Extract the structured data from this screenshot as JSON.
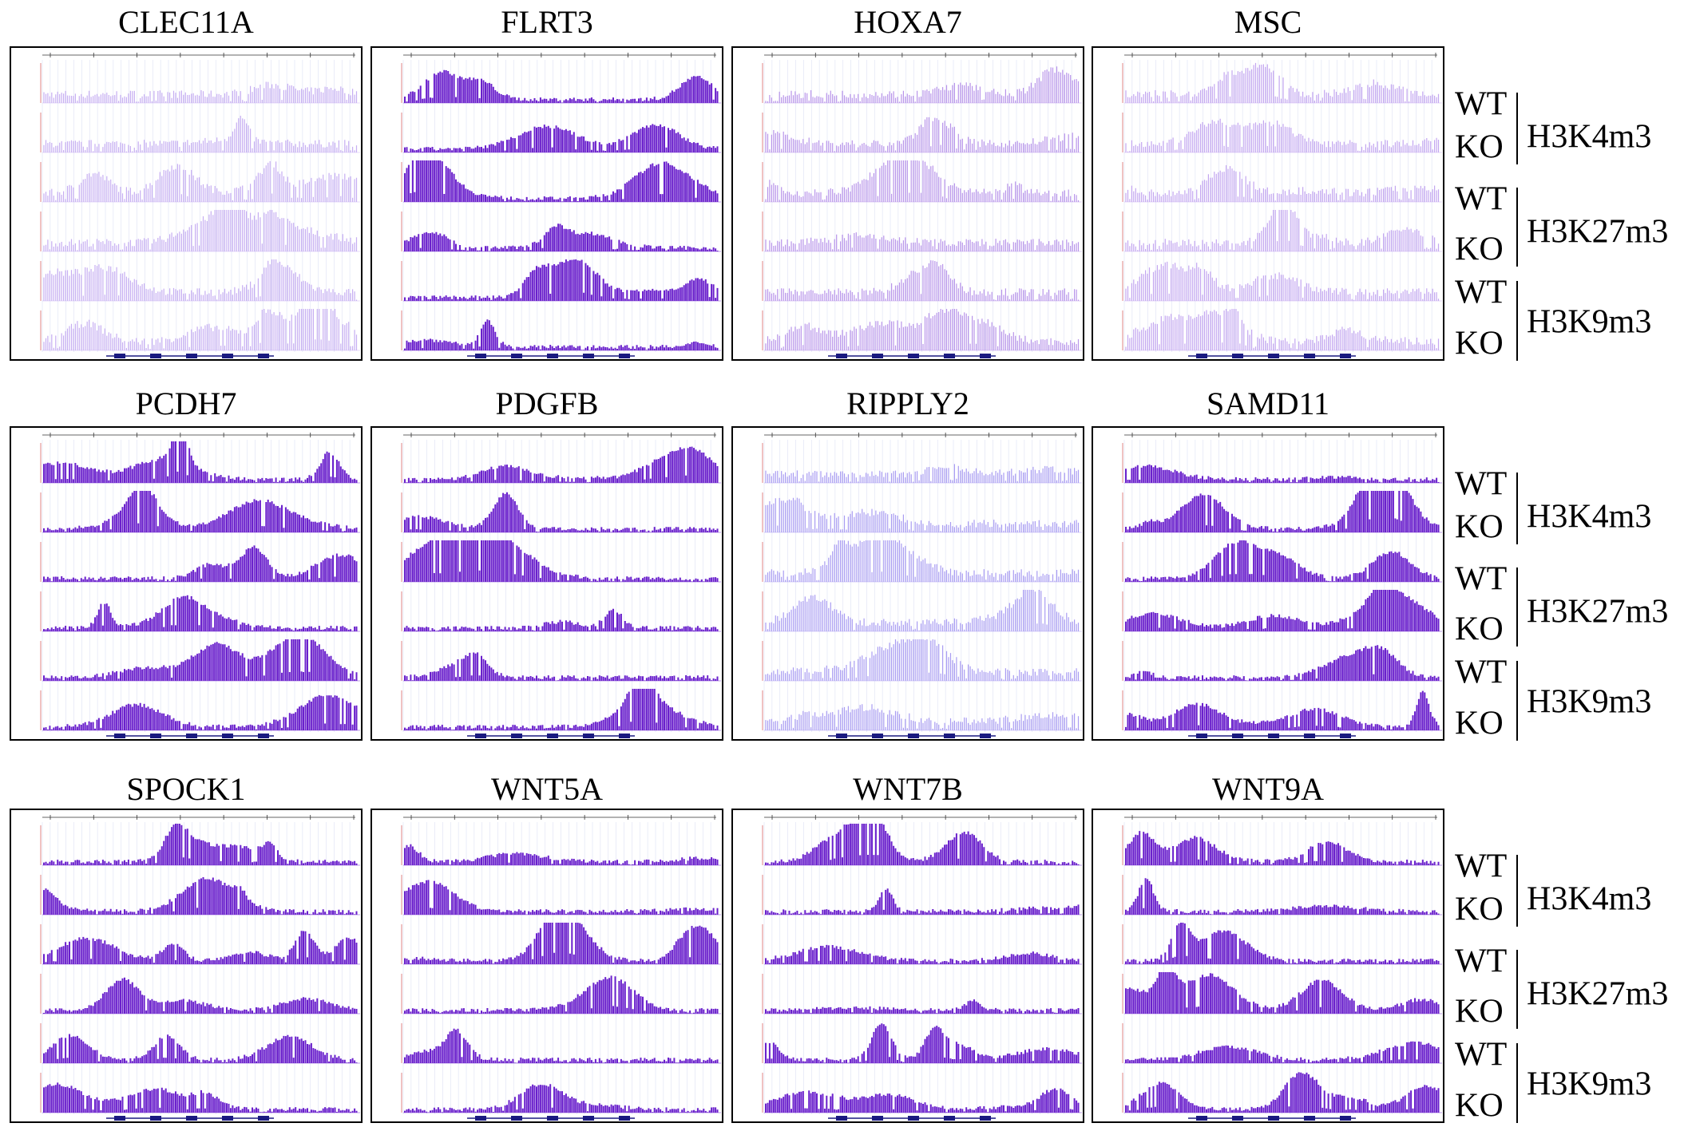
{
  "panels": [
    {
      "gene": "CLEC11A",
      "color": "#c6aef2"
    },
    {
      "gene": "FLRT3",
      "color": "#6a20cc"
    },
    {
      "gene": "HOXA7",
      "color": "#b894ea"
    },
    {
      "gene": "MSC",
      "color": "#c3a6f0"
    },
    {
      "gene": "PCDH7",
      "color": "#6a20cc"
    },
    {
      "gene": "PDGFB",
      "color": "#6a20cc"
    },
    {
      "gene": "RIPPLY2",
      "color": "#a99cf2"
    },
    {
      "gene": "SAMD11",
      "color": "#6a20cc"
    },
    {
      "gene": "SPOCK1",
      "color": "#6a20cc"
    },
    {
      "gene": "WNT5A",
      "color": "#6a20cc"
    },
    {
      "gene": "WNT7B",
      "color": "#6a20cc"
    },
    {
      "gene": "WNT9A",
      "color": "#6a20cc"
    }
  ],
  "row_groups": [
    {
      "samples": [
        "WT",
        "KO",
        "WT",
        "KO",
        "WT",
        "KO"
      ],
      "marks": [
        "H3K4m3",
        "H3K27m3",
        "H3K9m3"
      ]
    },
    {
      "samples": [
        "WT",
        "KO",
        "WT",
        "KO",
        "WT",
        "KO"
      ],
      "marks": [
        "H3K4m3",
        "H3K27m3",
        "H3K9m3"
      ]
    },
    {
      "samples": [
        "WT",
        "KO",
        "WT",
        "KO",
        "WT",
        "KO"
      ],
      "marks": [
        "H3K4m3",
        "H3K27m3",
        "H3K9m3"
      ]
    }
  ]
}
